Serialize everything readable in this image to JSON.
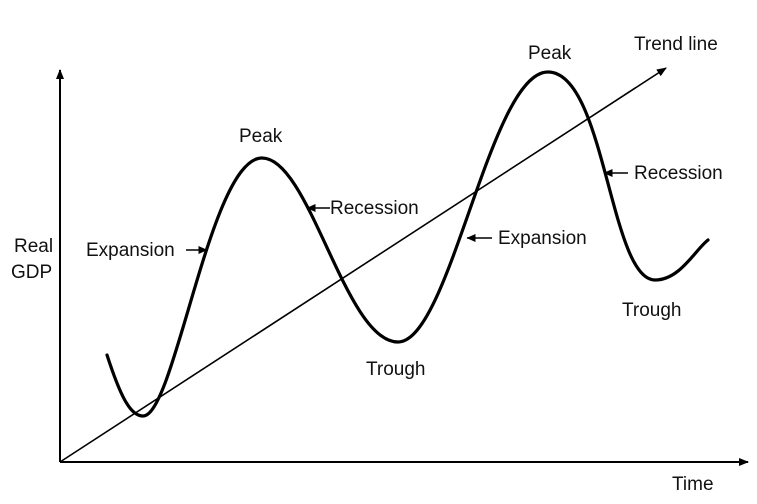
{
  "axes": {
    "y_label_line1": "Real",
    "y_label_line2": "GDP",
    "x_label": "Time"
  },
  "labels": {
    "peak_1": "Peak",
    "peak_2": "Peak",
    "trough_1": "Trough",
    "trough_2": "Trough",
    "expansion_1": "Expansion",
    "expansion_2": "Expansion",
    "recession_1": "Recession",
    "recession_2": "Recession",
    "trend_line": "Trend line"
  },
  "colors": {
    "line": "#000000",
    "text": "#111111",
    "background": "#ffffff"
  }
}
